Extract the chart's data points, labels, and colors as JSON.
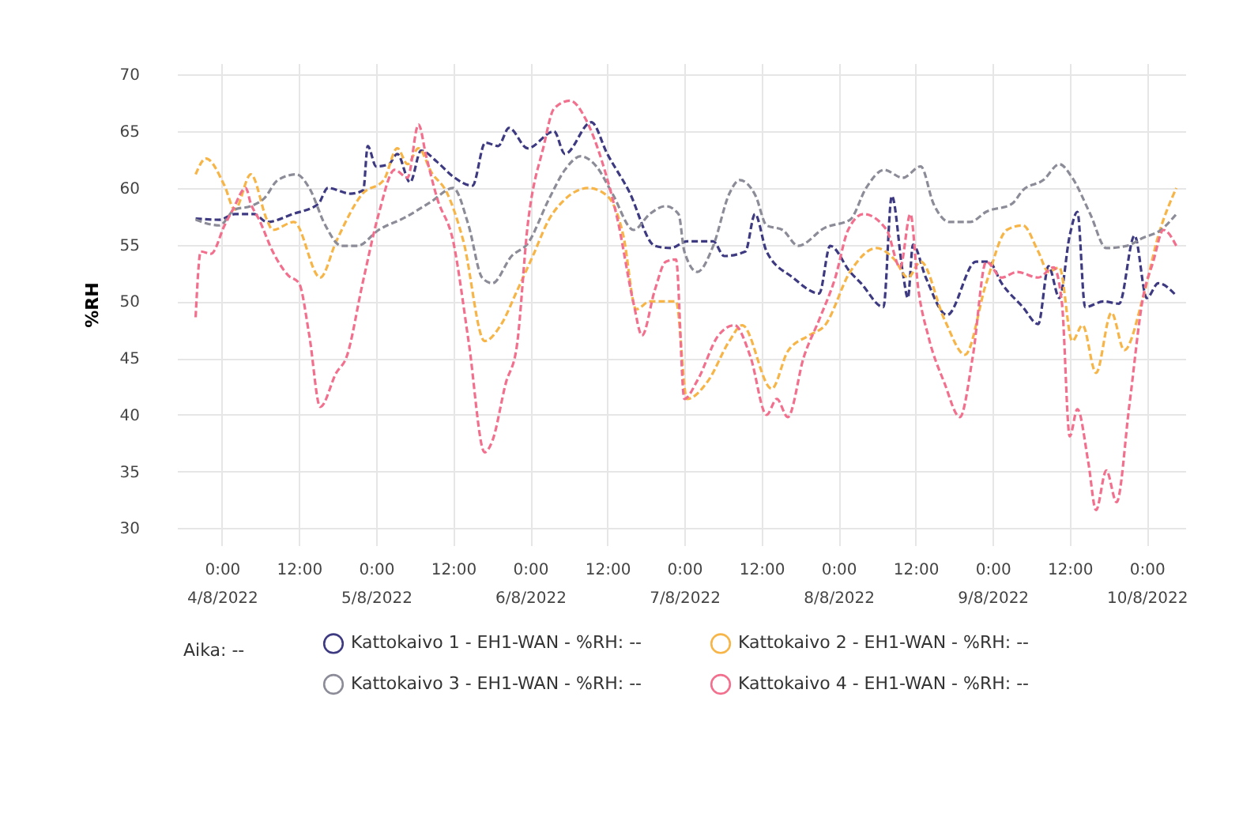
{
  "chart_data": {
    "type": "line",
    "ylabel": "%RH",
    "xlim": [
      "2022-08-03T17:00",
      "2022-08-10T06:00"
    ],
    "ylim": [
      28.5,
      71
    ],
    "yticks": [
      30,
      35,
      40,
      45,
      50,
      55,
      60,
      65,
      70
    ],
    "xticks": [
      {
        "value": "2022-08-04T00:00",
        "label": "0:00\n4/8/2022"
      },
      {
        "value": "2022-08-04T12:00",
        "label": "12:00"
      },
      {
        "value": "2022-08-05T00:00",
        "label": "0:00\n5/8/2022"
      },
      {
        "value": "2022-08-05T12:00",
        "label": "12:00"
      },
      {
        "value": "2022-08-06T00:00",
        "label": "0:00\n6/8/2022"
      },
      {
        "value": "2022-08-06T12:00",
        "label": "12:00"
      },
      {
        "value": "2022-08-07T00:00",
        "label": "0:00\n7/8/2022"
      },
      {
        "value": "2022-08-07T12:00",
        "label": "12:00"
      },
      {
        "value": "2022-08-08T00:00",
        "label": "0:00\n8/8/2022"
      },
      {
        "value": "2022-08-08T12:00",
        "label": "12:00"
      },
      {
        "value": "2022-08-09T00:00",
        "label": "0:00\n9/8/2022"
      },
      {
        "value": "2022-08-09T12:00",
        "label": "12:00"
      },
      {
        "value": "2022-08-10T00:00",
        "label": "0:00\n10/8/2022"
      }
    ],
    "grid": true,
    "legend": "bottom",
    "line_style": "dashed",
    "annotations": [
      "Aika: --"
    ],
    "series": [
      {
        "name": "Kattokaivo 1 - EH1-WAN - %RH: --",
        "color": "#3d3a82",
        "x": [
          "2022-08-03T19:54",
          "2022-08-03T23:36",
          "2022-08-04T02:00",
          "2022-08-04T05:00",
          "2022-08-04T07:00",
          "2022-08-04T11:00",
          "2022-08-04T15:00",
          "2022-08-04T16:30",
          "2022-08-04T20:00",
          "2022-08-04T22:00",
          "2022-08-04T22:42",
          "2022-08-05T00:00",
          "2022-08-05T02:00",
          "2022-08-05T03:18",
          "2022-08-05T05:18",
          "2022-08-05T07:00",
          "2022-08-05T09:30",
          "2022-08-05T12:00",
          "2022-08-05T15:00",
          "2022-08-05T17:00",
          "2022-08-05T19:00",
          "2022-08-05T20:42",
          "2022-08-05T23:36",
          "2022-08-06T03:42",
          "2022-08-06T05:24",
          "2022-08-06T09:30",
          "2022-08-06T12:00",
          "2022-08-06T15:18",
          "2022-08-06T19:24",
          "2022-08-06T21:54",
          "2022-08-07T00:24",
          "2022-08-07T04:30",
          "2022-08-07T06:12",
          "2022-08-07T09:30",
          "2022-08-07T11:00",
          "2022-08-07T12:48",
          "2022-08-07T16:54",
          "2022-08-07T21:00",
          "2022-08-07T22:42",
          "2022-08-08T01:48",
          "2022-08-08T03:30",
          "2022-08-08T07:00",
          "2022-08-08T08:18",
          "2022-08-08T10:00",
          "2022-08-08T10:48",
          "2022-08-08T11:36",
          "2022-08-08T13:36",
          "2022-08-08T16:54",
          "2022-08-08T21:24",
          "2022-08-08T23:24",
          "2022-08-09T01:24",
          "2022-08-09T04:42",
          "2022-08-09T07:06",
          "2022-08-09T08:42",
          "2022-08-09T10:24",
          "2022-08-09T12:00",
          "2022-08-09T13:12",
          "2022-08-09T14:24",
          "2022-08-09T17:18",
          "2022-08-09T19:42",
          "2022-08-09T22:06",
          "2022-08-10T00:00",
          "2022-08-10T01:48",
          "2022-08-10T04:36"
        ],
        "values": [
          57.3,
          57.2,
          57.7,
          57.7,
          57,
          57.7,
          58.6,
          60,
          59.5,
          59.8,
          63.7,
          61.9,
          62.1,
          63,
          60.5,
          63.3,
          62.3,
          61,
          60.2,
          64,
          63.7,
          65.3,
          63.5,
          65,
          63,
          65.8,
          63,
          59.8,
          54.9,
          54.7,
          55.3,
          55.3,
          54,
          54.4,
          57.7,
          54.4,
          52.1,
          50.7,
          54.9,
          52.6,
          51.6,
          49.5,
          59.3,
          52.6,
          50.3,
          55,
          52.1,
          48.8,
          53.5,
          53.5,
          51.6,
          49.5,
          48,
          53.1,
          50.3,
          55.8,
          57.9,
          49.5,
          50,
          49.8,
          55.8,
          50.3,
          51.6,
          50.5
        ]
      },
      {
        "name": "Kattokaivo 2 - EH1-WAN - %RH: --",
        "color": "#f7b548",
        "x": [
          "2022-08-03T19:54",
          "2022-08-03T21:30",
          "2022-08-04T00:24",
          "2022-08-04T02:00",
          "2022-08-04T04:30",
          "2022-08-04T07:00",
          "2022-08-04T07:54",
          "2022-08-04T11:12",
          "2022-08-04T15:18",
          "2022-08-04T17:48",
          "2022-08-04T21:54",
          "2022-08-05T01:12",
          "2022-08-05T03:18",
          "2022-08-05T04:54",
          "2022-08-05T06:36",
          "2022-08-05T08:36",
          "2022-08-05T11:06",
          "2022-08-05T13:36",
          "2022-08-05T16:54",
          "2022-08-05T19:24",
          "2022-08-05T22:00",
          "2022-08-06T00:24",
          "2022-08-06T02:54",
          "2022-08-06T05:24",
          "2022-08-06T09:06",
          "2022-08-06T12:00",
          "2022-08-06T14:30",
          "2022-08-06T16:30",
          "2022-08-06T18:36",
          "2022-08-06T22:42",
          "2022-08-07T00:24",
          "2022-08-07T03:42",
          "2022-08-07T07:00",
          "2022-08-07T09:00",
          "2022-08-07T13:36",
          "2022-08-07T16:06",
          "2022-08-07T19:24",
          "2022-08-07T21:54",
          "2022-08-08T01:48",
          "2022-08-08T05:54",
          "2022-08-08T08:42",
          "2022-08-08T10:48",
          "2022-08-08T12:48",
          "2022-08-08T16:30",
          "2022-08-08T19:42",
          "2022-08-08T23:00",
          "2022-08-09T02:12",
          "2022-08-09T04:42",
          "2022-08-09T07:06",
          "2022-08-09T08:42",
          "2022-08-09T10:24",
          "2022-08-09T12:24",
          "2022-08-09T14:00",
          "2022-08-09T16:06",
          "2022-08-09T18:30",
          "2022-08-09T20:30",
          "2022-08-09T23:24",
          "2022-08-10T01:48",
          "2022-08-10T04:36"
        ],
        "values": [
          61.2,
          62.6,
          60.2,
          58.1,
          61.2,
          57.2,
          56.3,
          57,
          52.1,
          55.3,
          59.5,
          60.7,
          63.5,
          62.1,
          63.5,
          61.4,
          59.5,
          55.3,
          46.5,
          47.9,
          51,
          54,
          57.2,
          59,
          60,
          59.3,
          55.8,
          49.3,
          50,
          50,
          41.4,
          43,
          46.5,
          47.9,
          42.3,
          45.6,
          47,
          47.9,
          52.6,
          54.7,
          53.7,
          52.1,
          53.5,
          48.4,
          45.3,
          51.6,
          56.3,
          56.7,
          54.4,
          52.6,
          53,
          46.5,
          47.9,
          43.7,
          49,
          45.7,
          50.3,
          55.8,
          60
        ]
      },
      {
        "name": "Kattokaivo 3 - EH1-WAN - %RH: --",
        "color": "#8c8c98",
        "x": [
          "2022-08-03T19:54",
          "2022-08-03T23:36",
          "2022-08-04T02:00",
          "2022-08-04T04:30",
          "2022-08-04T06:36",
          "2022-08-04T08:42",
          "2022-08-04T11:36",
          "2022-08-04T13:36",
          "2022-08-04T16:06",
          "2022-08-04T18:36",
          "2022-08-04T21:06",
          "2022-08-05T00:24",
          "2022-08-05T04:30",
          "2022-08-05T08:36",
          "2022-08-05T12:00",
          "2022-08-05T14:24",
          "2022-08-05T16:30",
          "2022-08-05T18:06",
          "2022-08-05T21:06",
          "2022-08-05T23:36",
          "2022-08-06T02:54",
          "2022-08-06T05:24",
          "2022-08-06T07:54",
          "2022-08-06T10:18",
          "2022-08-06T12:48",
          "2022-08-06T16:06",
          "2022-08-06T18:36",
          "2022-08-06T21:06",
          "2022-08-06T23:06",
          "2022-08-07T00:00",
          "2022-08-07T02:00",
          "2022-08-07T04:30",
          "2022-08-07T07:00",
          "2022-08-07T08:36",
          "2022-08-07T11:06",
          "2022-08-07T12:48",
          "2022-08-07T15:18",
          "2022-08-07T17:42",
          "2022-08-07T21:54",
          "2022-08-08T01:48",
          "2022-08-08T04:18",
          "2022-08-08T07:06",
          "2022-08-08T10:00",
          "2022-08-08T12:48",
          "2022-08-08T14:48",
          "2022-08-08T17:18",
          "2022-08-08T20:30",
          "2022-08-08T23:00",
          "2022-08-09T03:00",
          "2022-08-09T04:42",
          "2022-08-09T07:54",
          "2022-08-09T10:24",
          "2022-08-09T12:24",
          "2022-08-09T15:12",
          "2022-08-09T17:42",
          "2022-08-09T20:54",
          "2022-08-09T23:24",
          "2022-08-10T02:12",
          "2022-08-10T04:36"
        ],
        "values": [
          57.2,
          56.7,
          58.1,
          58.4,
          59.1,
          60.7,
          61.2,
          60,
          56.7,
          54.9,
          54.9,
          56.3,
          57.4,
          58.8,
          60,
          56.7,
          52.1,
          51.6,
          54,
          55.1,
          59,
          61.6,
          62.8,
          61.9,
          59.5,
          56.3,
          57.7,
          58.4,
          57.7,
          54.4,
          52.6,
          54.9,
          59.5,
          60.7,
          59.3,
          56.7,
          56.3,
          54.9,
          56.5,
          57.2,
          60,
          61.6,
          60.9,
          61.9,
          58.6,
          57,
          57,
          57.9,
          58.6,
          59.8,
          60.7,
          62.1,
          60.9,
          57.7,
          54.7,
          54.9,
          55.6,
          56.3,
          57.7
        ]
      },
      {
        "name": "Kattokaivo 4 - EH1-WAN - %RH: --",
        "color": "#f2708e",
        "x": [
          "2022-08-03T19:54",
          "2022-08-03T20:42",
          "2022-08-03T22:18",
          "2022-08-04T00:24",
          "2022-08-04T01:42",
          "2022-08-04T03:42",
          "2022-08-04T04:30",
          "2022-08-04T05:48",
          "2022-08-04T07:54",
          "2022-08-04T10:18",
          "2022-08-04T12:00",
          "2022-08-04T13:36",
          "2022-08-04T15:18",
          "2022-08-04T17:48",
          "2022-08-04T19:24",
          "2022-08-04T21:54",
          "2022-08-05T00:24",
          "2022-08-05T02:54",
          "2022-08-05T04:54",
          "2022-08-05T06:36",
          "2022-08-05T07:48",
          "2022-08-05T09:30",
          "2022-08-05T12:00",
          "2022-08-05T14:24",
          "2022-08-05T16:54",
          "2022-08-05T18:06",
          "2022-08-05T20:12",
          "2022-08-05T21:54",
          "2022-08-05T23:36",
          "2022-08-06T02:06",
          "2022-08-06T03:42",
          "2022-08-06T06:12",
          "2022-08-06T08:42",
          "2022-08-06T11:12",
          "2022-08-06T13:36",
          "2022-08-06T16:06",
          "2022-08-06T17:24",
          "2022-08-06T19:24",
          "2022-08-06T21:06",
          "2022-08-06T22:42",
          "2022-08-07T00:00",
          "2022-08-07T02:00",
          "2022-08-07T05:18",
          "2022-08-07T07:48",
          "2022-08-07T10:18",
          "2022-08-07T12:48",
          "2022-08-07T14:24",
          "2022-08-07T16:06",
          "2022-08-07T18:36",
          "2022-08-07T21:00",
          "2022-08-07T23:30",
          "2022-08-08T01:30",
          "2022-08-08T03:54",
          "2022-08-08T07:30",
          "2022-08-08T09:36",
          "2022-08-08T11:12",
          "2022-08-08T12:24",
          "2022-08-08T14:00",
          "2022-08-08T16:30",
          "2022-08-08T18:54",
          "2022-08-08T20:54",
          "2022-08-08T23:00",
          "2022-08-09T01:24",
          "2022-08-09T03:48",
          "2022-08-09T07:06",
          "2022-08-09T09:30",
          "2022-08-09T10:48",
          "2022-08-09T12:00",
          "2022-08-09T13:12",
          "2022-08-09T14:54",
          "2022-08-09T16:06",
          "2022-08-09T17:42",
          "2022-08-09T19:18",
          "2022-08-09T21:18",
          "2022-08-09T23:24",
          "2022-08-10T01:00",
          "2022-08-10T02:36",
          "2022-08-10T04:36"
        ],
        "values": [
          48.6,
          54.4,
          54.2,
          56.7,
          58.1,
          60,
          58.6,
          57.2,
          54.4,
          52.3,
          51.6,
          47,
          40.7,
          43.7,
          45.1,
          51.6,
          57.7,
          61.6,
          60.9,
          65.6,
          62.8,
          59.1,
          55.3,
          46.5,
          36.7,
          37.7,
          42.8,
          46,
          56.7,
          63.7,
          67,
          67.7,
          66,
          62.3,
          57.2,
          49.8,
          47,
          51,
          53.5,
          53.7,
          41.4,
          43,
          47,
          47.9,
          45.1,
          40,
          41.4,
          39.8,
          45.1,
          48.4,
          52.1,
          56.3,
          57.7,
          56.3,
          53,
          57.7,
          51.2,
          46.9,
          42.8,
          39.8,
          45.1,
          53.5,
          52.1,
          52.6,
          52.1,
          53,
          49.8,
          38.1,
          40.5,
          35.8,
          31.6,
          35.1,
          32.3,
          40.9,
          50.3,
          53.5,
          56.3,
          54.9
        ]
      }
    ]
  }
}
